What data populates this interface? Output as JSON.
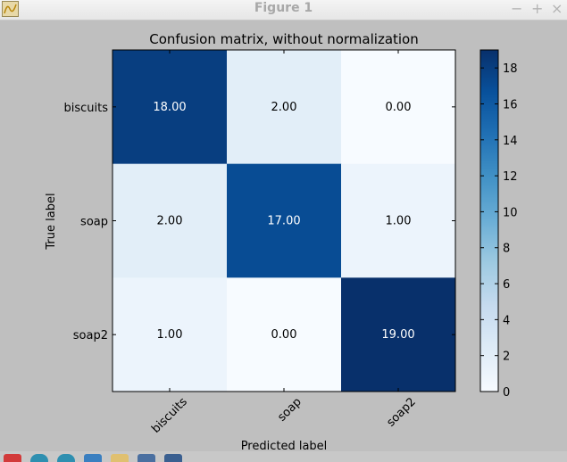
{
  "window": {
    "title": "Figure 1",
    "buttons": {
      "minimize": "−",
      "maximize": "+",
      "close": "×"
    }
  },
  "toolbar": {
    "icons": [
      "home-icon",
      "back-icon",
      "forward-icon",
      "pan-icon",
      "zoom-icon",
      "configure-subplots-icon",
      "save-icon"
    ]
  },
  "chart_data": {
    "type": "heatmap",
    "title": "Confusion matrix, without normalization",
    "xlabel": "Predicted label",
    "ylabel": "True label",
    "x_categories": [
      "biscuits",
      "soap",
      "soap2"
    ],
    "y_categories": [
      "biscuits",
      "soap",
      "soap2"
    ],
    "values": [
      [
        18,
        2,
        0
      ],
      [
        2,
        17,
        1
      ],
      [
        1,
        0,
        19
      ]
    ],
    "cell_labels": [
      [
        "18.00",
        "2.00",
        "0.00"
      ],
      [
        "2.00",
        "17.00",
        "1.00"
      ],
      [
        "1.00",
        "0.00",
        "19.00"
      ]
    ],
    "colormap": "Blues",
    "colorbar": {
      "range": [
        0,
        19
      ],
      "ticks": [
        0,
        2,
        4,
        6,
        8,
        10,
        12,
        14,
        16,
        18
      ]
    }
  }
}
